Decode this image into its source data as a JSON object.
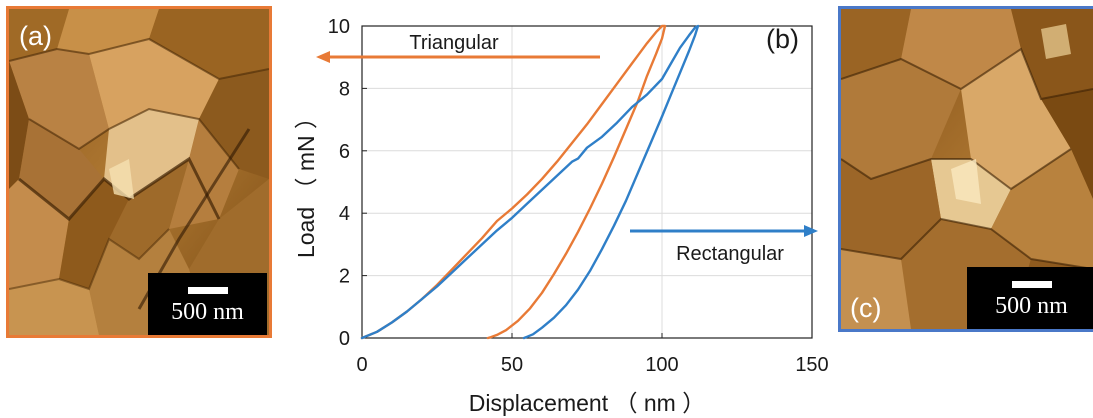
{
  "panels": {
    "a": {
      "letter": "(a)",
      "scalebar": "500 nm"
    },
    "b": {
      "letter": "(b)"
    },
    "c": {
      "letter": "(c)",
      "scalebar": "500 nm"
    }
  },
  "colors": {
    "triangular": "#e87a36",
    "rectangular": "#2f7fc8",
    "panel_a_border": "#e87a36",
    "panel_c_border": "#4a78c8"
  },
  "chart_data": {
    "type": "line",
    "xlabel": "Displacement （ nm ）",
    "ylabel": "Load （ mN ）",
    "xlim": [
      0,
      150
    ],
    "ylim": [
      0,
      10
    ],
    "xticks": [
      0,
      50,
      100,
      150
    ],
    "yticks": [
      0,
      2,
      4,
      6,
      8,
      10
    ],
    "grid": true,
    "annotations": [
      {
        "text": "Triangular",
        "arrow": "left",
        "color": "#e87a36"
      },
      {
        "text": "Rectangular",
        "arrow": "right",
        "color": "#2f7fc8"
      }
    ],
    "series": [
      {
        "color": "#e87a36",
        "x": [
          0,
          5,
          10,
          15,
          20,
          25,
          30,
          35,
          40,
          45,
          50,
          55,
          60,
          65,
          70,
          75,
          80,
          85,
          90,
          95,
          98,
          100,
          101,
          100,
          98,
          95,
          92,
          88,
          84,
          80,
          76,
          72,
          68,
          64,
          60,
          56,
          52,
          48,
          45,
          43,
          42
        ],
        "y": [
          0,
          0.2,
          0.5,
          0.85,
          1.25,
          1.7,
          2.2,
          2.7,
          3.2,
          3.75,
          4.15,
          4.6,
          5.1,
          5.65,
          6.25,
          6.85,
          7.5,
          8.15,
          8.8,
          9.45,
          9.8,
          10,
          10,
          9.6,
          9.1,
          8.4,
          7.6,
          6.7,
          5.8,
          4.95,
          4.15,
          3.4,
          2.7,
          2.05,
          1.45,
          0.95,
          0.55,
          0.25,
          0.1,
          0.03,
          0
        ]
      },
      {
        "color": "#2f7fc8",
        "x": [
          0,
          5,
          10,
          15,
          20,
          25,
          30,
          35,
          40,
          45,
          50,
          55,
          60,
          65,
          70,
          72,
          75,
          80,
          85,
          90,
          95,
          100,
          103,
          106,
          109,
          111,
          112,
          111,
          109,
          106,
          103,
          100,
          96,
          92,
          88,
          84,
          80,
          76,
          72,
          68,
          64,
          60,
          57,
          55,
          54
        ],
        "y": [
          0,
          0.2,
          0.5,
          0.85,
          1.25,
          1.65,
          2.1,
          2.55,
          3.0,
          3.45,
          3.85,
          4.3,
          4.75,
          5.2,
          5.65,
          5.75,
          6.1,
          6.45,
          6.9,
          7.4,
          7.8,
          8.3,
          8.8,
          9.3,
          9.7,
          9.95,
          10,
          9.7,
          9.2,
          8.5,
          7.8,
          7.1,
          6.2,
          5.3,
          4.4,
          3.6,
          2.85,
          2.15,
          1.55,
          1.05,
          0.65,
          0.33,
          0.12,
          0.04,
          0
        ]
      }
    ]
  }
}
